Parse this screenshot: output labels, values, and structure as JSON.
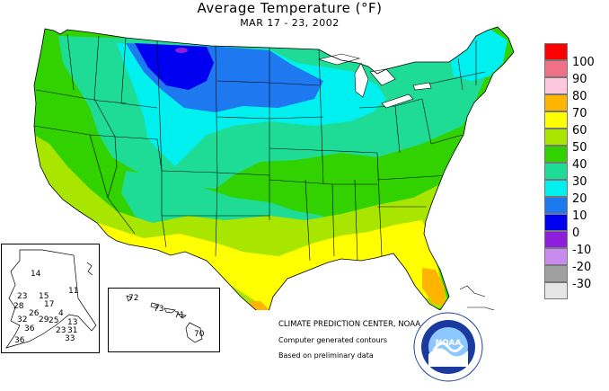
{
  "map": {
    "title": "Average Temperature (°F)",
    "date_range": "MAR 17 - 23, 2002"
  },
  "legend": [
    {
      "value": "100",
      "color": "#ff0000"
    },
    {
      "value": "90",
      "color": "#f07088"
    },
    {
      "value": "80",
      "color": "#ffc8dc"
    },
    {
      "value": "70",
      "color": "#ffb400"
    },
    {
      "value": "60",
      "color": "#ffff00"
    },
    {
      "value": "50",
      "color": "#a8e600"
    },
    {
      "value": "40",
      "color": "#32d200"
    },
    {
      "value": "30",
      "color": "#1edc96"
    },
    {
      "value": "20",
      "color": "#00f0f0"
    },
    {
      "value": "10",
      "color": "#1e78f0"
    },
    {
      "value": "0",
      "color": "#0000f0"
    },
    {
      "value": "-10",
      "color": "#8c1edc"
    },
    {
      "value": "-20",
      "color": "#c88cf0"
    },
    {
      "value": "-30",
      "color": "#a0a0a0"
    },
    {
      "value": "",
      "color": "#e6e6e6"
    }
  ],
  "alaska": {
    "labels": [
      {
        "text": "14"
      },
      {
        "text": "23"
      },
      {
        "text": "15"
      },
      {
        "text": "11"
      },
      {
        "text": "17"
      },
      {
        "text": "28"
      },
      {
        "text": "26"
      },
      {
        "text": "4"
      },
      {
        "text": "32"
      },
      {
        "text": "29"
      },
      {
        "text": "25"
      },
      {
        "text": "13"
      },
      {
        "text": "36"
      },
      {
        "text": "23"
      },
      {
        "text": "31"
      },
      {
        "text": "36"
      },
      {
        "text": "33"
      }
    ]
  },
  "hawaii": {
    "labels": [
      {
        "text": "72"
      },
      {
        "text": "73"
      },
      {
        "text": "71"
      },
      {
        "text": "70"
      }
    ]
  },
  "credits": {
    "center": "CLIMATE PREDICTION CENTER, NOAA",
    "line2": "Computer generated contours",
    "line3": "Based on preliminary data"
  },
  "logo": {
    "text": "NOAA"
  }
}
